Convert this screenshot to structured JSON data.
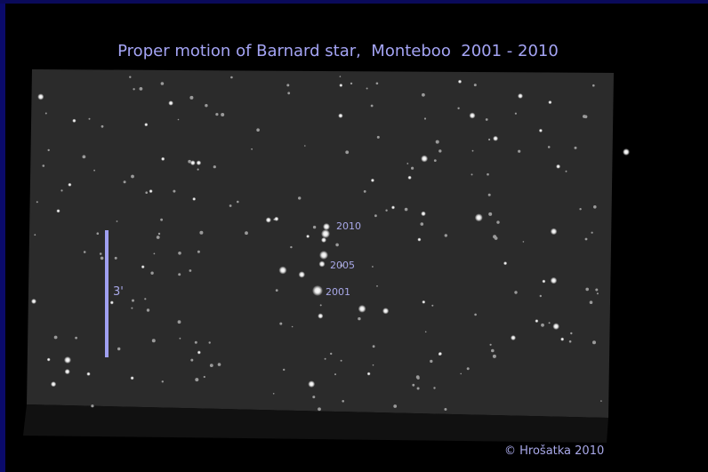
{
  "title": "Proper motion of Barnard star,  Monteboo  2001 - 2010",
  "epochs": [
    "2010",
    "2005",
    "2001"
  ],
  "scale_label": "3'",
  "credit": "© Hrošatka 2010"
}
